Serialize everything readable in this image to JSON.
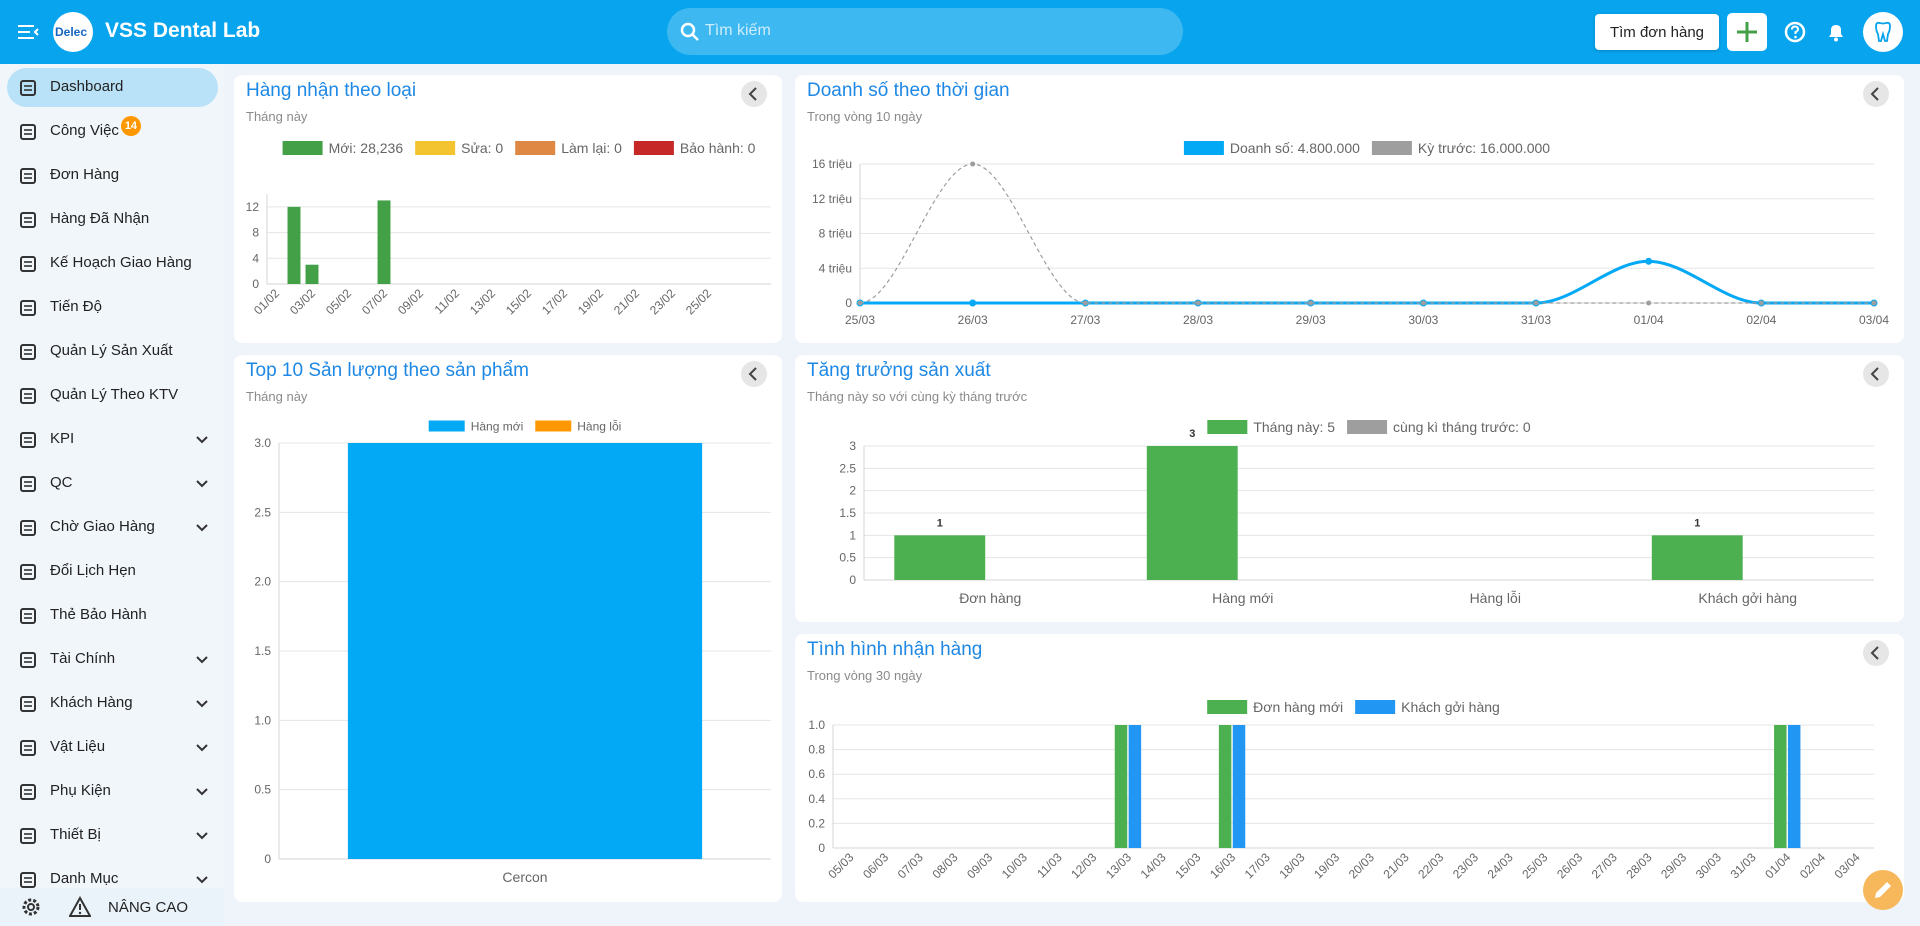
{
  "header": {
    "logo_text": "Delec",
    "title": "VSS Dental Lab",
    "search_placeholder": "Tìm kiếm",
    "find_order": "Tìm đơn hàng"
  },
  "sidebar": {
    "items": [
      {
        "label": "Dashboard",
        "active": true
      },
      {
        "label": "Công Việc",
        "badge": 14
      },
      {
        "label": "Đơn Hàng"
      },
      {
        "label": "Hàng Đã Nhận"
      },
      {
        "label": "Kế Hoạch Giao Hàng"
      },
      {
        "label": "Tiến Độ"
      },
      {
        "label": "Quản Lý Sản Xuất"
      },
      {
        "label": "Quản Lý Theo KTV"
      },
      {
        "label": "KPI",
        "expandable": true
      },
      {
        "label": "QC",
        "expandable": true
      },
      {
        "label": "Chờ Giao Hàng",
        "expandable": true
      },
      {
        "label": "Đổi Lịch Hẹn"
      },
      {
        "label": "Thẻ Bảo Hành"
      },
      {
        "label": "Tài Chính",
        "expandable": true
      },
      {
        "label": "Khách Hàng",
        "expandable": true
      },
      {
        "label": "Vật Liệu",
        "expandable": true
      },
      {
        "label": "Phụ Kiện",
        "expandable": true
      },
      {
        "label": "Thiết Bị",
        "expandable": true
      },
      {
        "label": "Danh Mục",
        "expandable": true
      }
    ],
    "footer": "NÂNG CAO"
  },
  "chart_data": [
    {
      "type": "bar",
      "title": "Hàng nhận theo loại",
      "subtitle": "Tháng này",
      "stacked": true,
      "grid": true,
      "legend": "top",
      "categories": [
        "01/02",
        null,
        "03/02",
        null,
        "05/02",
        null,
        "07/02",
        null,
        "09/02",
        null,
        "11/02",
        null,
        "13/02",
        null,
        "15/02",
        null,
        "17/02",
        null,
        "19/02",
        null,
        "21/02",
        null,
        "23/02",
        null,
        "25/02",
        null,
        null,
        null
      ],
      "series": [
        {
          "name": "Mới: 28,236",
          "color": "#43a047",
          "values": [
            0,
            12,
            3,
            0,
            0,
            0,
            13,
            0,
            0,
            0,
            0,
            0,
            0,
            0,
            0,
            0,
            0,
            0,
            0,
            0,
            0,
            0,
            0,
            0,
            0,
            0,
            0,
            0
          ]
        },
        {
          "name": "Sửa: 0",
          "color": "#f4c430",
          "values": [
            0,
            0,
            0,
            0,
            0,
            0,
            0,
            0,
            0,
            0,
            0,
            0,
            0,
            0,
            0,
            0,
            0,
            0,
            0,
            0,
            0,
            0,
            0,
            0,
            0,
            0,
            0,
            0
          ]
        },
        {
          "name": "Làm lại: 0",
          "color": "#df8844",
          "values": [
            0,
            0,
            0,
            0,
            0,
            0,
            0,
            0,
            0,
            0,
            0,
            0,
            0,
            0,
            0,
            0,
            0,
            0,
            0,
            0,
            0,
            0,
            0,
            0,
            0,
            0,
            0,
            0
          ]
        },
        {
          "name": "Bảo hành: 0",
          "color": "#c62828",
          "values": [
            0,
            0,
            0,
            0,
            0,
            0,
            0,
            0,
            0,
            0,
            0,
            0,
            0,
            0,
            0,
            0,
            0,
            0,
            0,
            0,
            0,
            0,
            0,
            0,
            0,
            0,
            0,
            0
          ]
        }
      ],
      "ylim": [
        0,
        14
      ],
      "yticks": [
        0,
        4,
        8,
        12
      ]
    },
    {
      "type": "line",
      "title": "Doanh số theo thời gian",
      "subtitle": "Trong vòng 10 ngày",
      "grid": true,
      "legend": "top",
      "categories": [
        "25/03",
        "26/03",
        "27/03",
        "28/03",
        "29/03",
        "30/03",
        "31/03",
        "01/04",
        "02/04",
        "03/04"
      ],
      "series": [
        {
          "name": "Doanh số: 4.800.000",
          "color": "#03a9f4",
          "values": [
            0,
            0,
            0,
            0,
            0,
            0,
            0,
            4.8,
            0,
            0
          ]
        },
        {
          "name": "Kỳ trước: 16.000.000",
          "color": "#9e9e9e",
          "dashed": true,
          "values": [
            0,
            16,
            0,
            0,
            0,
            0,
            0,
            0,
            0,
            0
          ]
        }
      ],
      "ylim": [
        0,
        16
      ],
      "yticks": [
        0,
        {
          "value": 4,
          "label": "4 triệu"
        },
        {
          "value": 8,
          "label": "8 triệu"
        },
        {
          "value": 12,
          "label": "12 triệu"
        },
        {
          "value": 16,
          "label": "16 triệu"
        }
      ]
    },
    {
      "type": "bar",
      "title": "Top 10 Sản lượng theo sản phẩm",
      "subtitle": "Tháng này",
      "stacked": true,
      "grid": true,
      "legend": "top",
      "categories": [
        "Cercon"
      ],
      "series": [
        {
          "name": "Hàng mới",
          "color": "#03a9f4",
          "values": [
            3
          ]
        },
        {
          "name": "Hàng lỗi",
          "color": "#ff9800",
          "values": [
            0
          ]
        }
      ],
      "ylim": [
        0,
        3
      ],
      "yticks": [
        0,
        0.5,
        {
          "value": 1,
          "label": "1.0"
        },
        1.5,
        {
          "value": 2,
          "label": "2.0"
        },
        2.5,
        {
          "value": 3,
          "label": "3.0"
        }
      ]
    },
    {
      "type": "bar",
      "title": "Tăng trưởng sản xuất",
      "subtitle": "Tháng này so với cùng kỳ tháng trước",
      "stacked": false,
      "grid": true,
      "legend": "top",
      "data_labels": true,
      "categories": [
        "Đơn hàng",
        "Hàng mới",
        "Hàng lỗi",
        "Khách gởi hàng"
      ],
      "series": [
        {
          "name": "Tháng này: 5",
          "color": "#4caf50",
          "values": [
            1,
            3,
            0,
            1
          ]
        },
        {
          "name": "cùng kì tháng trước: 0",
          "color": "#9e9e9e",
          "values": [
            0,
            0,
            0,
            0
          ]
        }
      ],
      "ylim": [
        0,
        3
      ],
      "yticks": [
        0,
        0.5,
        1,
        1.5,
        2,
        2.5,
        3
      ]
    },
    {
      "type": "bar",
      "title": "Tình hình nhận hàng",
      "subtitle": "Trong vòng 30 ngày",
      "stacked": false,
      "grid": true,
      "legend": "top",
      "categories": [
        "05/03",
        "06/03",
        "07/03",
        "08/03",
        "09/03",
        "10/03",
        "11/03",
        "12/03",
        "13/03",
        "14/03",
        "15/03",
        "16/03",
        "17/03",
        "18/03",
        "19/03",
        "20/03",
        "21/03",
        "22/03",
        "23/03",
        "24/03",
        "25/03",
        "26/03",
        "27/03",
        "28/03",
        "29/03",
        "30/03",
        "31/03",
        "01/04",
        "02/04",
        "03/04"
      ],
      "series": [
        {
          "name": "Đơn hàng mới",
          "color": "#4caf50",
          "values": [
            0,
            0,
            0,
            0,
            0,
            0,
            0,
            0,
            1,
            0,
            0,
            1,
            0,
            0,
            0,
            0,
            0,
            0,
            0,
            0,
            0,
            0,
            0,
            0,
            0,
            0,
            0,
            1,
            0,
            0
          ]
        },
        {
          "name": "Khách gởi hàng",
          "color": "#2196f3",
          "values": [
            0,
            0,
            0,
            0,
            0,
            0,
            0,
            0,
            1,
            0,
            0,
            1,
            0,
            0,
            0,
            0,
            0,
            0,
            0,
            0,
            0,
            0,
            0,
            0,
            0,
            0,
            0,
            1,
            0,
            0
          ]
        }
      ],
      "ylim": [
        0,
        1
      ],
      "yticks": [
        0,
        0.2,
        0.4,
        0.6,
        0.8,
        {
          "value": 1,
          "label": "1.0"
        }
      ]
    }
  ]
}
